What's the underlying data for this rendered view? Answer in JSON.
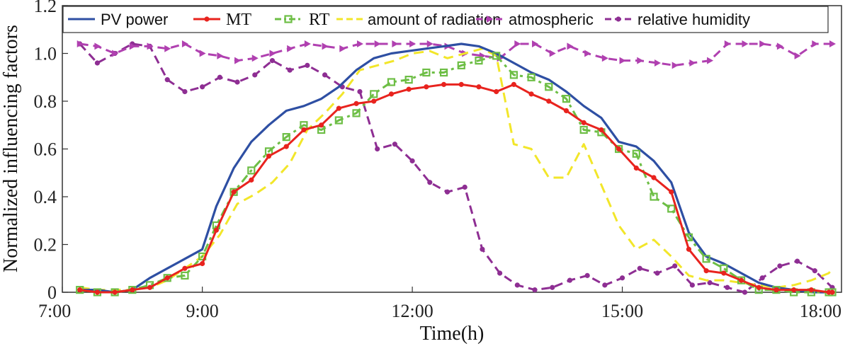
{
  "chart_data": {
    "type": "line",
    "title": "",
    "xlabel": "Time(h)",
    "ylabel": "Normalized influencing factors",
    "xlim": [
      7.0,
      18.0
    ],
    "ylim": [
      0,
      1.2
    ],
    "x_ticks": [
      7,
      9,
      12,
      15,
      18
    ],
    "x_tick_labels": [
      "7:00",
      "9:00",
      "12:00",
      "15:00",
      "18:00"
    ],
    "y_ticks": [
      0,
      0.2,
      0.4,
      0.6,
      0.8,
      1.0,
      1.2
    ],
    "y_tick_labels": [
      "0",
      "0.2",
      "0.4",
      "0.6",
      "0.8",
      "1.0",
      "1.2"
    ],
    "grid": false,
    "legend_position": "top",
    "series": [
      {
        "name": "PV power",
        "color": "#2E4FA3",
        "dash": "solid",
        "marker": "none",
        "points": [
          [
            7.25,
            0.01
          ],
          [
            7.5,
            0.01
          ],
          [
            7.75,
            0.0
          ],
          [
            8.0,
            0.01
          ],
          [
            8.25,
            0.06
          ],
          [
            8.5,
            0.1
          ],
          [
            8.75,
            0.14
          ],
          [
            9.0,
            0.18
          ],
          [
            9.2,
            0.36
          ],
          [
            9.45,
            0.52
          ],
          [
            9.7,
            0.63
          ],
          [
            9.95,
            0.7
          ],
          [
            10.2,
            0.76
          ],
          [
            10.45,
            0.78
          ],
          [
            10.7,
            0.81
          ],
          [
            10.95,
            0.86
          ],
          [
            11.2,
            0.93
          ],
          [
            11.45,
            0.98
          ],
          [
            11.7,
            1.0
          ],
          [
            11.95,
            1.01
          ],
          [
            12.2,
            1.02
          ],
          [
            12.45,
            1.03
          ],
          [
            12.7,
            1.04
          ],
          [
            12.95,
            1.03
          ],
          [
            13.2,
            1.0
          ],
          [
            13.45,
            0.96
          ],
          [
            13.7,
            0.92
          ],
          [
            13.95,
            0.89
          ],
          [
            14.2,
            0.84
          ],
          [
            14.45,
            0.78
          ],
          [
            14.7,
            0.73
          ],
          [
            14.95,
            0.63
          ],
          [
            15.2,
            0.61
          ],
          [
            15.45,
            0.55
          ],
          [
            15.7,
            0.46
          ],
          [
            15.95,
            0.25
          ],
          [
            16.2,
            0.15
          ],
          [
            16.45,
            0.12
          ],
          [
            16.7,
            0.08
          ],
          [
            16.95,
            0.04
          ],
          [
            17.2,
            0.02
          ],
          [
            17.45,
            0.01
          ],
          [
            17.7,
            0.0
          ],
          [
            17.95,
            0.0
          ],
          [
            18.0,
            0.0
          ]
        ]
      },
      {
        "name": "MT",
        "color": "#E8231E",
        "dash": "solid",
        "marker": "dot",
        "points": [
          [
            7.25,
            0.01
          ],
          [
            7.5,
            0.0
          ],
          [
            7.75,
            0.0
          ],
          [
            8.0,
            0.01
          ],
          [
            8.25,
            0.02
          ],
          [
            8.5,
            0.06
          ],
          [
            8.75,
            0.1
          ],
          [
            9.0,
            0.12
          ],
          [
            9.2,
            0.26
          ],
          [
            9.45,
            0.42
          ],
          [
            9.7,
            0.47
          ],
          [
            9.95,
            0.57
          ],
          [
            10.2,
            0.61
          ],
          [
            10.45,
            0.68
          ],
          [
            10.7,
            0.7
          ],
          [
            10.95,
            0.77
          ],
          [
            11.2,
            0.79
          ],
          [
            11.45,
            0.8
          ],
          [
            11.7,
            0.83
          ],
          [
            11.95,
            0.85
          ],
          [
            12.2,
            0.86
          ],
          [
            12.45,
            0.87
          ],
          [
            12.7,
            0.87
          ],
          [
            12.95,
            0.86
          ],
          [
            13.2,
            0.84
          ],
          [
            13.45,
            0.87
          ],
          [
            13.7,
            0.83
          ],
          [
            13.95,
            0.8
          ],
          [
            14.2,
            0.76
          ],
          [
            14.45,
            0.71
          ],
          [
            14.7,
            0.68
          ],
          [
            14.95,
            0.6
          ],
          [
            15.2,
            0.52
          ],
          [
            15.45,
            0.48
          ],
          [
            15.7,
            0.42
          ],
          [
            15.95,
            0.18
          ],
          [
            16.2,
            0.09
          ],
          [
            16.45,
            0.08
          ],
          [
            16.7,
            0.05
          ],
          [
            16.95,
            0.02
          ],
          [
            17.2,
            0.01
          ],
          [
            17.45,
            0.01
          ],
          [
            17.7,
            0.01
          ],
          [
            17.95,
            0.0
          ],
          [
            18.0,
            0.0
          ]
        ]
      },
      {
        "name": "RT",
        "color": "#6DBE45",
        "dash": "12,6,4,6",
        "marker": "square",
        "points": [
          [
            7.25,
            0.01
          ],
          [
            7.5,
            0.0
          ],
          [
            7.75,
            0.0
          ],
          [
            8.0,
            0.01
          ],
          [
            8.25,
            0.03
          ],
          [
            8.5,
            0.06
          ],
          [
            8.75,
            0.07
          ],
          [
            9.0,
            0.15
          ],
          [
            9.2,
            0.28
          ],
          [
            9.45,
            0.42
          ],
          [
            9.7,
            0.51
          ],
          [
            9.95,
            0.59
          ],
          [
            10.2,
            0.65
          ],
          [
            10.45,
            0.7
          ],
          [
            10.7,
            0.68
          ],
          [
            10.95,
            0.72
          ],
          [
            11.2,
            0.75
          ],
          [
            11.45,
            0.83
          ],
          [
            11.7,
            0.88
          ],
          [
            11.95,
            0.89
          ],
          [
            12.2,
            0.92
          ],
          [
            12.45,
            0.92
          ],
          [
            12.7,
            0.95
          ],
          [
            12.95,
            0.97
          ],
          [
            13.2,
            0.99
          ],
          [
            13.45,
            0.91
          ],
          [
            13.7,
            0.9
          ],
          [
            13.95,
            0.86
          ],
          [
            14.2,
            0.81
          ],
          [
            14.45,
            0.68
          ],
          [
            14.7,
            0.67
          ],
          [
            14.95,
            0.6
          ],
          [
            15.2,
            0.58
          ],
          [
            15.45,
            0.4
          ],
          [
            15.7,
            0.35
          ],
          [
            15.95,
            0.23
          ],
          [
            16.2,
            0.14
          ],
          [
            16.45,
            0.1
          ],
          [
            16.7,
            0.05
          ],
          [
            16.95,
            0.01
          ],
          [
            17.2,
            0.01
          ],
          [
            17.45,
            0.0
          ],
          [
            17.7,
            0.0
          ],
          [
            17.95,
            0.0
          ],
          [
            18.0,
            0.0
          ]
        ]
      },
      {
        "name": "amount of radiation",
        "color": "#F2E62A",
        "dash": "14,8",
        "marker": "none",
        "points": [
          [
            7.25,
            0.02
          ],
          [
            7.5,
            0.01
          ],
          [
            7.75,
            0.01
          ],
          [
            8.0,
            0.01
          ],
          [
            8.25,
            0.02
          ],
          [
            8.5,
            0.05
          ],
          [
            8.75,
            0.1
          ],
          [
            9.0,
            0.15
          ],
          [
            9.25,
            0.24
          ],
          [
            9.5,
            0.37
          ],
          [
            9.75,
            0.41
          ],
          [
            10.0,
            0.46
          ],
          [
            10.25,
            0.54
          ],
          [
            10.5,
            0.68
          ],
          [
            10.75,
            0.75
          ],
          [
            11.0,
            0.83
          ],
          [
            11.25,
            0.93
          ],
          [
            11.5,
            0.95
          ],
          [
            11.75,
            0.97
          ],
          [
            12.0,
            1.0
          ],
          [
            12.25,
            1.01
          ],
          [
            12.5,
            0.98
          ],
          [
            12.75,
            1.0
          ],
          [
            13.0,
            1.02
          ],
          [
            13.2,
            0.99
          ],
          [
            13.45,
            0.62
          ],
          [
            13.7,
            0.6
          ],
          [
            13.95,
            0.48
          ],
          [
            14.2,
            0.48
          ],
          [
            14.45,
            0.62
          ],
          [
            14.7,
            0.45
          ],
          [
            14.95,
            0.28
          ],
          [
            15.2,
            0.18
          ],
          [
            15.45,
            0.22
          ],
          [
            15.7,
            0.15
          ],
          [
            15.95,
            0.07
          ],
          [
            16.2,
            0.05
          ],
          [
            16.45,
            0.05
          ],
          [
            16.7,
            0.04
          ],
          [
            16.95,
            0.03
          ],
          [
            17.2,
            0.02
          ],
          [
            17.45,
            0.03
          ],
          [
            17.7,
            0.05
          ],
          [
            17.95,
            0.08
          ],
          [
            18.0,
            0.1
          ]
        ]
      },
      {
        "name": "atmospheric",
        "color": "#B040B0",
        "dash": "12,7",
        "marker": "arrow",
        "points": [
          [
            7.25,
            1.04
          ],
          [
            7.5,
            1.03
          ],
          [
            7.75,
            1.0
          ],
          [
            8.0,
            1.03
          ],
          [
            8.25,
            1.03
          ],
          [
            8.5,
            1.02
          ],
          [
            8.75,
            1.04
          ],
          [
            9.0,
            1.0
          ],
          [
            9.25,
            0.99
          ],
          [
            9.5,
            0.97
          ],
          [
            9.75,
            0.98
          ],
          [
            10.0,
            1.0
          ],
          [
            10.25,
            1.02
          ],
          [
            10.5,
            1.04
          ],
          [
            10.75,
            1.03
          ],
          [
            11.0,
            1.02
          ],
          [
            11.25,
            1.04
          ],
          [
            11.5,
            1.04
          ],
          [
            11.75,
            1.04
          ],
          [
            12.0,
            1.04
          ],
          [
            12.25,
            1.04
          ],
          [
            12.5,
            1.03
          ],
          [
            12.75,
            1.0
          ],
          [
            13.0,
            0.99
          ],
          [
            13.25,
            0.98
          ],
          [
            13.5,
            1.04
          ],
          [
            13.75,
            1.04
          ],
          [
            14.0,
            1.0
          ],
          [
            14.25,
            1.03
          ],
          [
            14.5,
            1.0
          ],
          [
            14.75,
            0.98
          ],
          [
            15.0,
            0.97
          ],
          [
            15.25,
            0.97
          ],
          [
            15.5,
            0.96
          ],
          [
            15.75,
            0.95
          ],
          [
            16.0,
            0.96
          ],
          [
            16.25,
            0.97
          ],
          [
            16.5,
            1.04
          ],
          [
            16.75,
            1.04
          ],
          [
            17.0,
            1.04
          ],
          [
            17.25,
            1.03
          ],
          [
            17.5,
            0.99
          ],
          [
            17.75,
            1.04
          ],
          [
            18.0,
            1.04
          ]
        ]
      },
      {
        "name": "relative humidity",
        "color": "#8E2E93",
        "dash": "12,7",
        "marker": "dot",
        "points": [
          [
            7.25,
            1.04
          ],
          [
            7.5,
            0.96
          ],
          [
            7.75,
            1.0
          ],
          [
            8.0,
            1.04
          ],
          [
            8.25,
            1.03
          ],
          [
            8.5,
            0.89
          ],
          [
            8.75,
            0.84
          ],
          [
            9.0,
            0.86
          ],
          [
            9.25,
            0.9
          ],
          [
            9.5,
            0.88
          ],
          [
            9.75,
            0.91
          ],
          [
            10.0,
            0.97
          ],
          [
            10.25,
            0.93
          ],
          [
            10.5,
            0.95
          ],
          [
            10.75,
            0.91
          ],
          [
            11.0,
            0.86
          ],
          [
            11.25,
            0.84
          ],
          [
            11.5,
            0.6
          ],
          [
            11.75,
            0.62
          ],
          [
            12.0,
            0.55
          ],
          [
            12.25,
            0.46
          ],
          [
            12.5,
            0.42
          ],
          [
            12.75,
            0.44
          ],
          [
            13.0,
            0.18
          ],
          [
            13.25,
            0.08
          ],
          [
            13.5,
            0.03
          ],
          [
            13.75,
            0.01
          ],
          [
            14.0,
            0.02
          ],
          [
            14.25,
            0.05
          ],
          [
            14.5,
            0.07
          ],
          [
            14.75,
            0.03
          ],
          [
            15.0,
            0.06
          ],
          [
            15.25,
            0.1
          ],
          [
            15.5,
            0.08
          ],
          [
            15.75,
            0.11
          ],
          [
            16.0,
            0.03
          ],
          [
            16.25,
            0.04
          ],
          [
            16.5,
            0.02
          ],
          [
            16.75,
            0.0
          ],
          [
            17.0,
            0.06
          ],
          [
            17.25,
            0.11
          ],
          [
            17.5,
            0.13
          ],
          [
            17.75,
            0.09
          ],
          [
            18.0,
            0.02
          ]
        ]
      }
    ]
  }
}
